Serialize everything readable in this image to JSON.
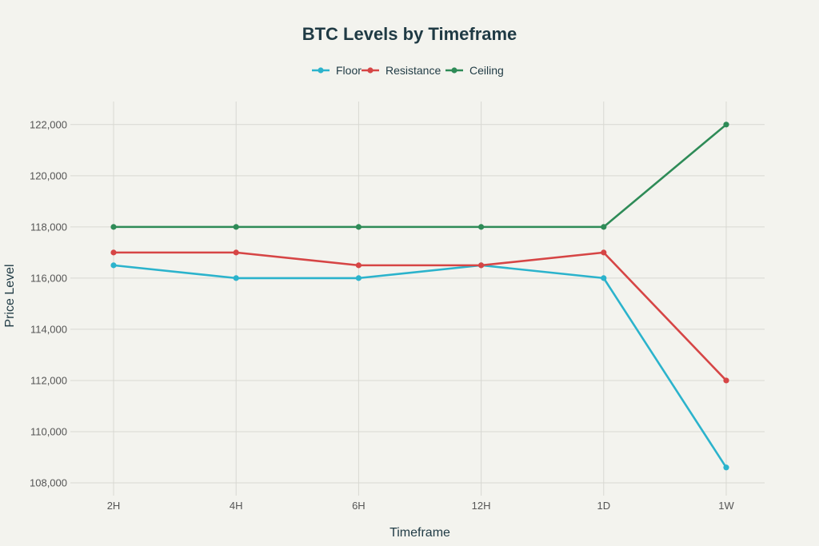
{
  "chart_data": {
    "type": "line",
    "title": "BTC Levels by Timeframe",
    "xlabel": "Timeframe",
    "ylabel": "Price Level",
    "categories": [
      "2H",
      "4H",
      "6H",
      "12H",
      "1D",
      "1W"
    ],
    "ylim": [
      107500,
      122900
    ],
    "yticks": [
      108000,
      110000,
      112000,
      114000,
      116000,
      118000,
      120000,
      122000
    ],
    "ytick_labels": [
      "108,000",
      "110,000",
      "112,000",
      "114,000",
      "116,000",
      "118,000",
      "120,000",
      "122,000"
    ],
    "grid": true,
    "legend_position": "top-center",
    "series": [
      {
        "name": "Floor",
        "color": "#2bb3cc",
        "values": [
          116500,
          116000,
          116000,
          116500,
          116000,
          108600
        ]
      },
      {
        "name": "Resistance",
        "color": "#d64545",
        "values": [
          117000,
          117000,
          116500,
          116500,
          117000,
          112000
        ]
      },
      {
        "name": "Ceiling",
        "color": "#2e8b57",
        "values": [
          118000,
          118000,
          118000,
          118000,
          118000,
          122000
        ]
      }
    ]
  }
}
